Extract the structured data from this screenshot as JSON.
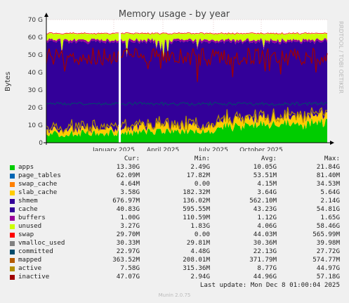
{
  "chart_data": {
    "type": "area",
    "title": "Memory usage - by year",
    "ylabel": "Bytes",
    "side_label": "RRDTOOL / TOBI OETIKER",
    "ylim": [
      0,
      70
    ],
    "y_ticks": [
      "0",
      "10 G",
      "20 G",
      "30 G",
      "40 G",
      "50 G",
      "60 G",
      "70 G"
    ],
    "x_ticks": [
      "January 2025",
      "April 2025",
      "July 2025",
      "October 2025"
    ],
    "x_tick_positions": [
      0.24,
      0.415,
      0.595,
      0.765
    ],
    "columns": [
      "Cur:",
      "Min:",
      "Avg:",
      "Max:"
    ],
    "series": [
      {
        "name": "apps",
        "color": "#00cc00",
        "cur": "13.30G",
        "min": "2.49G",
        "avg": "10.05G",
        "max": "21.84G"
      },
      {
        "name": "page_tables",
        "color": "#0066b3",
        "cur": "62.09M",
        "min": "17.82M",
        "avg": "53.51M",
        "max": "81.40M"
      },
      {
        "name": "swap_cache",
        "color": "#ff8000",
        "cur": "4.64M",
        "min": "0.00",
        "avg": "4.15M",
        "max": "34.53M"
      },
      {
        "name": "slab_cache",
        "color": "#ffcc00",
        "cur": "3.58G",
        "min": "182.32M",
        "avg": "3.64G",
        "max": "5.64G"
      },
      {
        "name": "shmem",
        "color": "#330099",
        "cur": "676.97M",
        "min": "136.02M",
        "avg": "562.10M",
        "max": "2.14G"
      },
      {
        "name": "cache",
        "color": "#330099",
        "cur": "40.83G",
        "min": "595.55M",
        "avg": "43.23G",
        "max": "54.81G"
      },
      {
        "name": "buffers",
        "color": "#990099",
        "cur": "1.00G",
        "min": "110.59M",
        "avg": "1.12G",
        "max": "1.65G"
      },
      {
        "name": "unused",
        "color": "#ccff00",
        "cur": "3.27G",
        "min": "1.83G",
        "avg": "4.06G",
        "max": "58.46G"
      },
      {
        "name": "swap",
        "color": "#ff0000",
        "cur": "29.70M",
        "min": "0.00",
        "avg": "44.03M",
        "max": "565.99M"
      },
      {
        "name": "vmalloc_used",
        "color": "#808080",
        "cur": "30.33M",
        "min": "29.81M",
        "avg": "30.36M",
        "max": "39.98M"
      },
      {
        "name": "committed",
        "color": "#004b6b",
        "cur": "22.97G",
        "min": "4.48G",
        "avg": "22.13G",
        "max": "27.72G"
      },
      {
        "name": "mapped",
        "color": "#b35a00",
        "cur": "363.52M",
        "min": "208.01M",
        "avg": "371.79M",
        "max": "574.77M"
      },
      {
        "name": "active",
        "color": "#b38f00",
        "cur": "7.58G",
        "min": "315.36M",
        "avg": "8.77G",
        "max": "44.97G"
      },
      {
        "name": "inactive",
        "color": "#a00000",
        "cur": "47.07G",
        "min": "2.94G",
        "avg": "44.96G",
        "max": "57.18G"
      }
    ]
  },
  "last_update": "Last update: Mon Dec  8 01:00:04 2025",
  "footer": "Munin 2.0.75"
}
